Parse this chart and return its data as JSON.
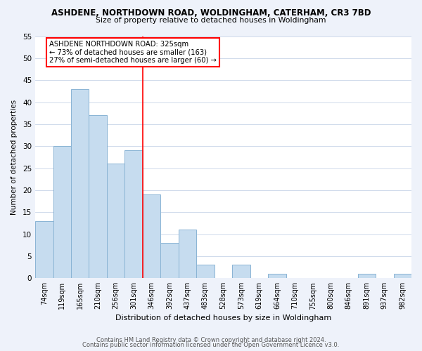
{
  "title": "ASHDENE, NORTHDOWN ROAD, WOLDINGHAM, CATERHAM, CR3 7BD",
  "subtitle": "Size of property relative to detached houses in Woldingham",
  "xlabel": "Distribution of detached houses by size in Woldingham",
  "ylabel": "Number of detached properties",
  "bar_labels": [
    "74sqm",
    "119sqm",
    "165sqm",
    "210sqm",
    "256sqm",
    "301sqm",
    "346sqm",
    "392sqm",
    "437sqm",
    "483sqm",
    "528sqm",
    "573sqm",
    "619sqm",
    "664sqm",
    "710sqm",
    "755sqm",
    "800sqm",
    "846sqm",
    "891sqm",
    "937sqm",
    "982sqm"
  ],
  "bar_values": [
    13,
    30,
    43,
    37,
    26,
    29,
    19,
    8,
    11,
    3,
    0,
    3,
    0,
    1,
    0,
    0,
    0,
    0,
    1,
    0,
    1
  ],
  "bar_color": "#c6dcef",
  "bar_edge_color": "#8ab4d4",
  "vline_x": 5.5,
  "vline_color": "red",
  "annotation_line1": "ASHDENE NORTHDOWN ROAD: 325sqm",
  "annotation_line2": "← 73% of detached houses are smaller (163)",
  "annotation_line3": "27% of semi-detached houses are larger (60) →",
  "annotation_box_color": "white",
  "annotation_box_edge": "red",
  "ylim": [
    0,
    55
  ],
  "yticks": [
    0,
    5,
    10,
    15,
    20,
    25,
    30,
    35,
    40,
    45,
    50,
    55
  ],
  "footer_line1": "Contains HM Land Registry data © Crown copyright and database right 2024.",
  "footer_line2": "Contains public sector information licensed under the Open Government Licence v3.0.",
  "bg_color": "#eef2fa",
  "plot_bg_color": "#ffffff",
  "grid_color": "#c8d4e8"
}
